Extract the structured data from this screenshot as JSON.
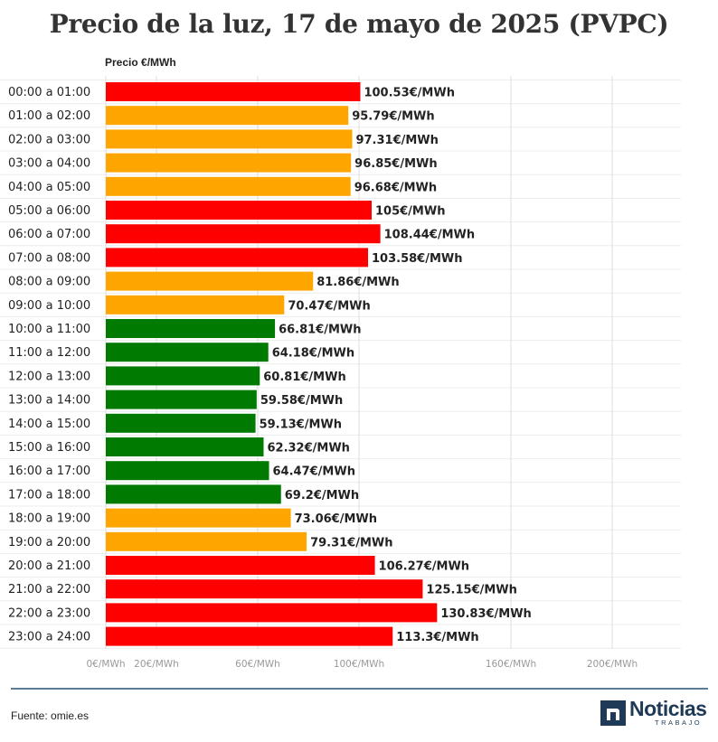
{
  "chart_data": {
    "type": "bar",
    "orientation": "horizontal",
    "title": "Precio de la luz, 17 de mayo de 2025 (PVPC)",
    "ylabel": "Precio €/MWh",
    "xlim": [
      0,
      230
    ],
    "x_ticks": [
      {
        "value": 0,
        "label": "0€/MWh"
      },
      {
        "value": 20,
        "label": "20€/MWh"
      },
      {
        "value": 60,
        "label": "60€/MWh"
      },
      {
        "value": 100,
        "label": "100€/MWh"
      },
      {
        "value": 160,
        "label": "160€/MWh"
      },
      {
        "value": 200,
        "label": "200€/MWh"
      }
    ],
    "grid": true,
    "colors": {
      "high": "#ff0000",
      "medium": "#ffa500",
      "low": "#007a00"
    },
    "categories": [
      "00:00 a 01:00",
      "01:00 a 02:00",
      "02:00 a 03:00",
      "03:00 a 04:00",
      "04:00 a 05:00",
      "05:00 a 06:00",
      "06:00 a 07:00",
      "07:00 a 08:00",
      "08:00 a 09:00",
      "09:00 a 10:00",
      "10:00 a 11:00",
      "11:00 a 12:00",
      "12:00 a 13:00",
      "13:00 a 14:00",
      "14:00 a 15:00",
      "15:00 a 16:00",
      "16:00 a 17:00",
      "17:00 a 18:00",
      "18:00 a 19:00",
      "19:00 a 20:00",
      "20:00 a 21:00",
      "21:00 a 22:00",
      "22:00 a 23:00",
      "23:00 a 24:00"
    ],
    "values": [
      100.53,
      95.79,
      97.31,
      96.85,
      96.68,
      105,
      108.44,
      103.58,
      81.86,
      70.47,
      66.81,
      64.18,
      60.81,
      59.58,
      59.13,
      62.32,
      64.47,
      69.2,
      73.06,
      79.31,
      106.27,
      125.15,
      130.83,
      113.3
    ],
    "value_labels": [
      "100.53€/MWh",
      "95.79€/MWh",
      "97.31€/MWh",
      "96.85€/MWh",
      "96.68€/MWh",
      "105€/MWh",
      "108.44€/MWh",
      "103.58€/MWh",
      "81.86€/MWh",
      "70.47€/MWh",
      "66.81€/MWh",
      "64.18€/MWh",
      "60.81€/MWh",
      "59.58€/MWh",
      "59.13€/MWh",
      "62.32€/MWh",
      "64.47€/MWh",
      "69.2€/MWh",
      "73.06€/MWh",
      "79.31€/MWh",
      "106.27€/MWh",
      "125.15€/MWh",
      "130.83€/MWh",
      "113.3€/MWh"
    ],
    "levels": [
      "high",
      "medium",
      "medium",
      "medium",
      "medium",
      "high",
      "high",
      "high",
      "medium",
      "medium",
      "low",
      "low",
      "low",
      "low",
      "low",
      "low",
      "low",
      "low",
      "medium",
      "medium",
      "high",
      "high",
      "high",
      "high"
    ]
  },
  "footer": {
    "source": "Fuente: omie.es",
    "logo_text": "Noticias",
    "logo_sub": "TRABAJO",
    "logo_color": "#1f3a57"
  }
}
